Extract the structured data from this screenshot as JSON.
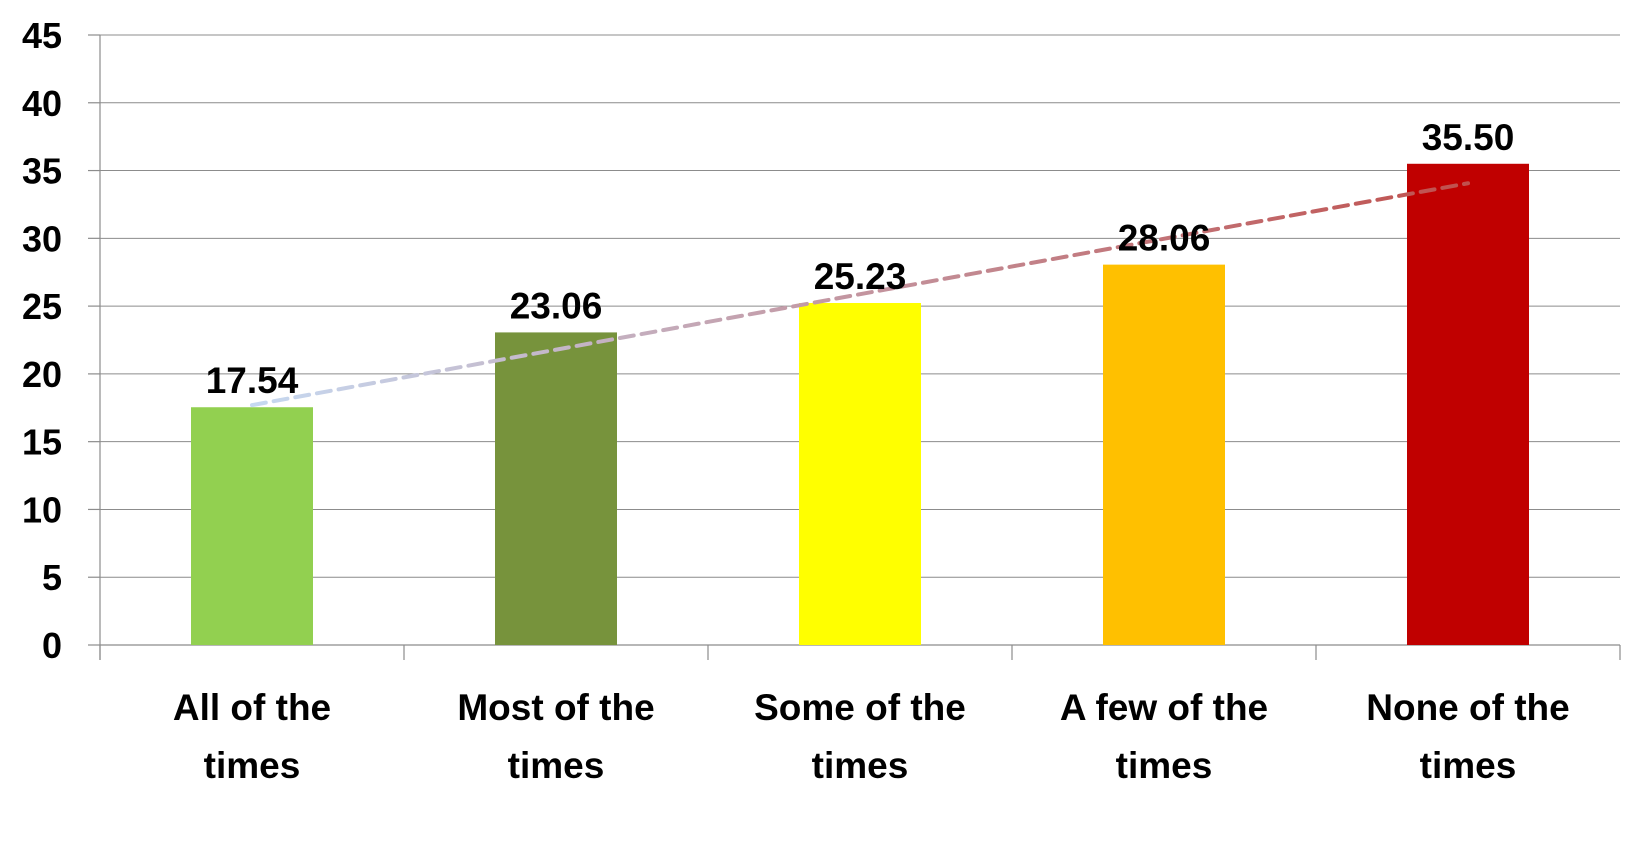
{
  "chart_data": {
    "type": "bar",
    "title": "",
    "xlabel": "",
    "ylabel": "",
    "categories": [
      [
        "All of the",
        "times"
      ],
      [
        "Most of the",
        "times"
      ],
      [
        "Some of the",
        "times"
      ],
      [
        "A few of the",
        "times"
      ],
      [
        "None of the",
        "times"
      ]
    ],
    "values": [
      17.54,
      23.06,
      25.23,
      28.06,
      35.5
    ],
    "value_labels": [
      "17.54",
      "23.06",
      "25.23",
      "28.06",
      "35.50"
    ],
    "bar_colors": [
      "#92d050",
      "#77933c",
      "#ffff00",
      "#ffc000",
      "#c00000"
    ],
    "ylim": [
      0,
      45
    ],
    "yticks": [
      0,
      5,
      10,
      15,
      20,
      25,
      30,
      35,
      40,
      45
    ],
    "grid": true,
    "legend": "none",
    "trendline": {
      "type": "linear",
      "style": "dashed",
      "color_start": "#c6d9f1",
      "color_end": "#c0504d"
    }
  }
}
